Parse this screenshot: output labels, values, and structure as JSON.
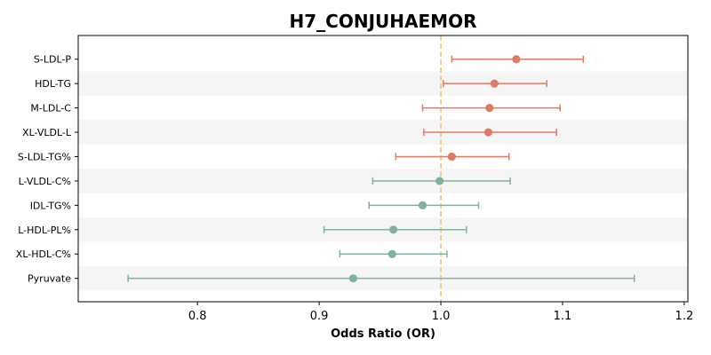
{
  "chart_data": {
    "type": "forest",
    "title": "H7_CONJUHAEMOR",
    "xlabel": "Odds Ratio (OR)",
    "ylabel": "",
    "xlim": [
      0.702,
      1.203
    ],
    "x_ticks": [
      0.8,
      0.9,
      1.0,
      1.1,
      1.2
    ],
    "x_tick_labels": [
      "0.8",
      "0.9",
      "1.0",
      "1.1",
      "1.2"
    ],
    "reference_line": 1.0,
    "grid": false,
    "colors": {
      "positive": "#e07b63",
      "negative": "#7fb39b",
      "reference": "#f0c27a",
      "band": "#f5f5f5"
    },
    "rows": [
      {
        "label": "S-LDL-P",
        "or": 1.062,
        "lower": 1.009,
        "upper": 1.117,
        "group": "positive"
      },
      {
        "label": "HDL-TG",
        "or": 1.044,
        "lower": 1.002,
        "upper": 1.087,
        "group": "positive"
      },
      {
        "label": "M-LDL-C",
        "or": 1.04,
        "lower": 0.985,
        "upper": 1.098,
        "group": "positive"
      },
      {
        "label": "XL-VLDL-L",
        "or": 1.039,
        "lower": 0.986,
        "upper": 1.095,
        "group": "positive"
      },
      {
        "label": "S-LDL-TG%",
        "or": 1.009,
        "lower": 0.963,
        "upper": 1.056,
        "group": "positive"
      },
      {
        "label": "L-VLDL-C%",
        "or": 0.999,
        "lower": 0.944,
        "upper": 1.057,
        "group": "negative"
      },
      {
        "label": "IDL-TG%",
        "or": 0.985,
        "lower": 0.941,
        "upper": 1.031,
        "group": "negative"
      },
      {
        "label": "L-HDL-PL%",
        "or": 0.961,
        "lower": 0.904,
        "upper": 1.021,
        "group": "negative"
      },
      {
        "label": "XL-HDL-C%",
        "or": 0.96,
        "lower": 0.917,
        "upper": 1.005,
        "group": "negative"
      },
      {
        "label": "Pyruvate",
        "or": 0.928,
        "lower": 0.743,
        "upper": 1.159,
        "group": "negative"
      }
    ]
  }
}
